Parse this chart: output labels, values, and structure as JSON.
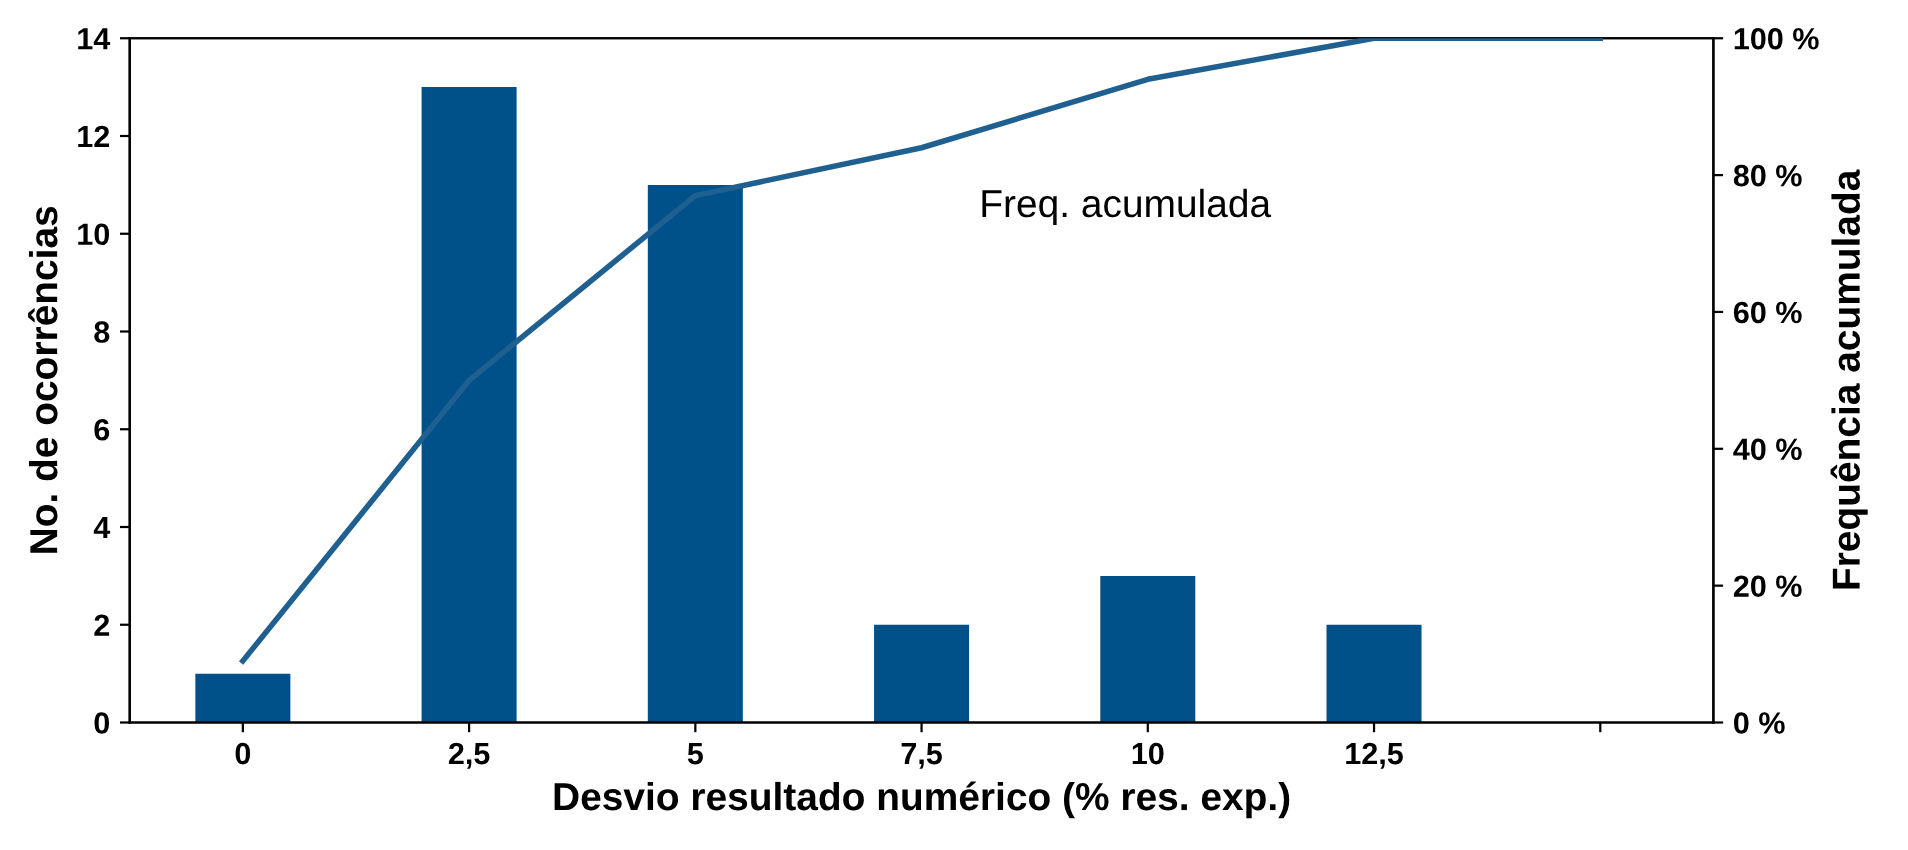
{
  "chart_data": {
    "type": "bar",
    "xlabel": "Desvio resultado numérico (% res. exp.)",
    "ylabel": "No. de ocorrências",
    "y2label": "Frequência acumulada",
    "categories": [
      "0",
      "2,5",
      "5",
      "7,5",
      "10",
      "12,5",
      null
    ],
    "series": [
      {
        "color": "#00508a",
        "values": [
          1,
          13,
          11,
          2,
          3,
          2,
          null
        ]
      },
      {
        "type": "line",
        "axis": "y2",
        "color": "#1f6090",
        "values": [
          9,
          50,
          77,
          84,
          94,
          100,
          100
        ]
      }
    ],
    "ylim": [
      0,
      14
    ],
    "yticks": [
      0,
      2,
      4,
      6,
      8,
      10,
      12,
      14
    ],
    "y2lim": [
      0,
      100
    ],
    "y2ticks": [
      {
        "value": 0,
        "label": "0 %"
      },
      {
        "value": 20,
        "label": "20 %"
      },
      {
        "value": 40,
        "label": "40 %"
      },
      {
        "value": 60,
        "label": "60 %"
      },
      {
        "value": 80,
        "label": "80 %"
      },
      {
        "value": 100,
        "label": "100 %"
      }
    ],
    "annotations": [
      "Freq. acumulada"
    ],
    "grid": false,
    "legend": false,
    "marker": "none",
    "line_style": "solid"
  }
}
